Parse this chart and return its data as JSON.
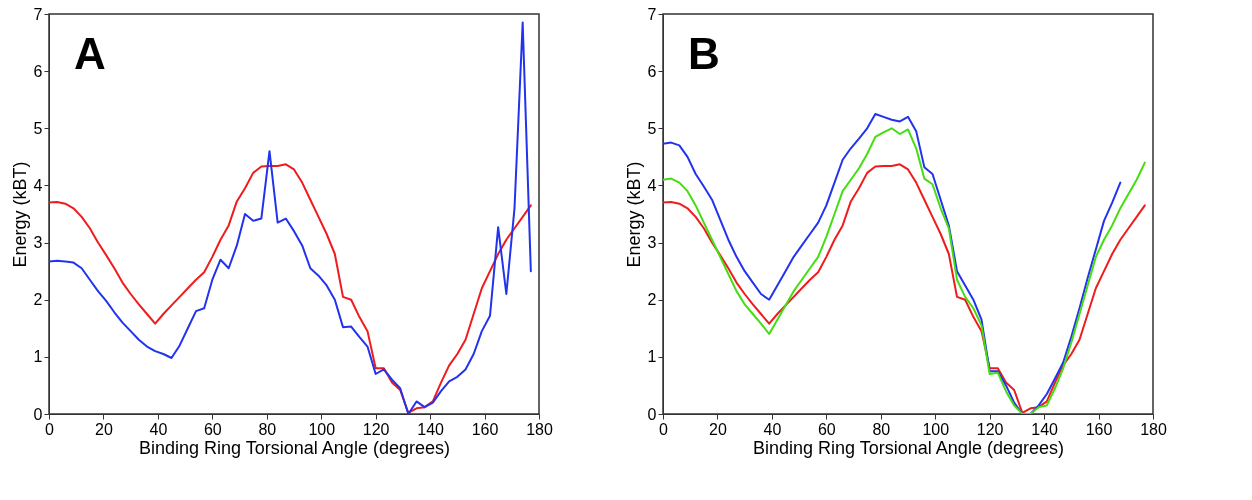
{
  "chart_data": [
    {
      "type": "line",
      "title": "A",
      "xlabel": "Binding Ring Torsional Angle (degrees)",
      "ylabel": "Energy (kBT)",
      "xlim": [
        0,
        180
      ],
      "ylim": [
        0,
        7
      ],
      "xticks": [
        0,
        20,
        40,
        60,
        80,
        100,
        120,
        140,
        160,
        180
      ],
      "yticks": [
        0,
        1,
        2,
        3,
        4,
        5,
        6,
        7
      ],
      "grid": false,
      "legend": false,
      "line_style": "solid",
      "marker": "none",
      "x": [
        0,
        3,
        6,
        9,
        12,
        15,
        18,
        21,
        24,
        27,
        30,
        33,
        36,
        39,
        42,
        45,
        48,
        51,
        54,
        57,
        60,
        63,
        66,
        69,
        72,
        75,
        78,
        81,
        84,
        87,
        90,
        93,
        96,
        99,
        102,
        105,
        108,
        111,
        114,
        117,
        120,
        123,
        126,
        129,
        132,
        135,
        138,
        141,
        144,
        147,
        150,
        153,
        156,
        159,
        162,
        165,
        168,
        171,
        174,
        177
      ],
      "series": [
        {
          "color": "#ee1c1c",
          "values": [
            3.7,
            3.71,
            3.68,
            3.6,
            3.45,
            3.25,
            3.0,
            2.78,
            2.55,
            2.3,
            2.1,
            1.92,
            1.75,
            1.58,
            1.75,
            1.9,
            2.05,
            2.2,
            2.35,
            2.48,
            2.75,
            3.05,
            3.3,
            3.72,
            3.95,
            4.22,
            4.33,
            4.34,
            4.34,
            4.37,
            4.28,
            4.05,
            3.75,
            3.45,
            3.15,
            2.8,
            2.05,
            2.0,
            1.7,
            1.45,
            0.8,
            0.8,
            0.55,
            0.42,
            0.02,
            0.1,
            0.12,
            0.22,
            0.55,
            0.85,
            1.05,
            1.3,
            1.75,
            2.2,
            2.5,
            2.8,
            3.05,
            3.25,
            3.45,
            3.65
          ]
        },
        {
          "color": "#2233ee",
          "values": [
            2.67,
            2.68,
            2.67,
            2.65,
            2.55,
            2.35,
            2.15,
            1.98,
            1.78,
            1.6,
            1.45,
            1.3,
            1.18,
            1.1,
            1.05,
            0.98,
            1.2,
            1.5,
            1.8,
            1.85,
            2.35,
            2.7,
            2.55,
            2.95,
            3.5,
            3.38,
            3.42,
            4.6,
            3.35,
            3.42,
            3.2,
            2.95,
            2.55,
            2.42,
            2.25,
            2.0,
            1.52,
            1.53,
            1.35,
            1.18,
            0.7,
            0.78,
            0.6,
            0.45,
            0.0,
            0.22,
            0.12,
            0.2,
            0.4,
            0.57,
            0.65,
            0.78,
            1.05,
            1.45,
            1.72,
            3.27,
            2.1,
            3.6,
            6.85,
            2.5
          ]
        }
      ]
    },
    {
      "type": "line",
      "title": "B",
      "xlabel": "Binding Ring Torsional Angle (degrees)",
      "ylabel": "Energy (kBT)",
      "xlim": [
        0,
        180
      ],
      "ylim": [
        0,
        7
      ],
      "xticks": [
        0,
        20,
        40,
        60,
        80,
        100,
        120,
        140,
        160,
        180
      ],
      "yticks": [
        0,
        1,
        2,
        3,
        4,
        5,
        6,
        7
      ],
      "grid": false,
      "legend": false,
      "line_style": "solid",
      "marker": "none",
      "x": [
        0,
        3,
        6,
        9,
        12,
        15,
        18,
        21,
        24,
        27,
        30,
        33,
        36,
        39,
        42,
        45,
        48,
        51,
        54,
        57,
        60,
        63,
        66,
        69,
        72,
        75,
        78,
        81,
        84,
        87,
        90,
        93,
        96,
        99,
        102,
        105,
        108,
        111,
        114,
        117,
        120,
        123,
        126,
        129,
        132,
        135,
        138,
        141,
        144,
        147,
        150,
        153,
        156,
        159,
        162,
        165,
        168,
        171,
        174,
        177
      ],
      "series": [
        {
          "color": "#ee1c1c",
          "values": [
            3.7,
            3.71,
            3.68,
            3.6,
            3.45,
            3.25,
            3.0,
            2.78,
            2.55,
            2.3,
            2.1,
            1.92,
            1.75,
            1.58,
            1.75,
            1.9,
            2.05,
            2.2,
            2.35,
            2.48,
            2.75,
            3.05,
            3.3,
            3.72,
            3.95,
            4.22,
            4.33,
            4.34,
            4.34,
            4.37,
            4.28,
            4.05,
            3.75,
            3.45,
            3.15,
            2.8,
            2.05,
            2.0,
            1.7,
            1.45,
            0.8,
            0.8,
            0.55,
            0.42,
            0.02,
            0.1,
            0.12,
            0.22,
            0.55,
            0.85,
            1.05,
            1.3,
            1.75,
            2.2,
            2.5,
            2.8,
            3.05,
            3.25,
            3.45,
            3.65
          ]
        },
        {
          "color": "#2233ee",
          "values": [
            4.73,
            4.75,
            4.7,
            4.5,
            4.2,
            3.98,
            3.75,
            3.4,
            3.05,
            2.75,
            2.5,
            2.3,
            2.1,
            2.0,
            2.25,
            2.5,
            2.75,
            2.95,
            3.15,
            3.35,
            3.65,
            4.05,
            4.45,
            4.65,
            4.82,
            5.0,
            5.25,
            5.2,
            5.15,
            5.12,
            5.2,
            4.95,
            4.32,
            4.2,
            3.75,
            3.3,
            2.5,
            2.25,
            2.0,
            1.65,
            0.75,
            0.75,
            0.5,
            0.2,
            0.0,
            0.0,
            0.15,
            0.35,
            0.62,
            0.9,
            1.35,
            1.85,
            2.38,
            2.88,
            3.38,
            3.7,
            4.05,
            null,
            null,
            null
          ]
        },
        {
          "color": "#44dd11",
          "values": [
            4.1,
            4.12,
            4.05,
            3.9,
            3.65,
            3.35,
            3.05,
            2.75,
            2.45,
            2.15,
            1.92,
            1.75,
            1.58,
            1.4,
            1.65,
            1.9,
            2.15,
            2.35,
            2.55,
            2.75,
            3.1,
            3.5,
            3.9,
            4.1,
            4.3,
            4.55,
            4.85,
            4.93,
            5.0,
            4.9,
            4.98,
            4.65,
            4.12,
            4.02,
            3.6,
            3.25,
            2.35,
            2.05,
            1.85,
            1.55,
            0.7,
            0.72,
            0.4,
            0.15,
            0.0,
            0.0,
            0.12,
            0.15,
            0.45,
            0.8,
            1.25,
            1.75,
            2.25,
            2.75,
            3.05,
            3.3,
            3.6,
            3.85,
            4.1,
            4.4
          ]
        }
      ]
    }
  ]
}
